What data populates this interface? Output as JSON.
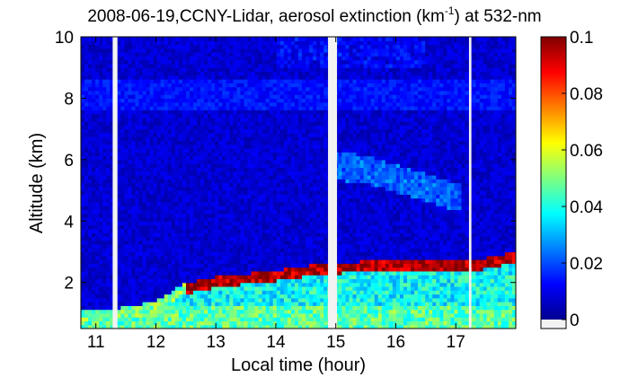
{
  "chart_data": {
    "type": "heatmap",
    "title": {
      "prefix": "2008-06-19,CCNY-Lidar, aerosol extinction (km",
      "superscript": "-1",
      "suffix": ") at 532-nm"
    },
    "xlabel": "Local time (hour)",
    "ylabel": "Altitude (km)",
    "xlim": [
      10.75,
      18.0
    ],
    "ylim": [
      0.5,
      10
    ],
    "x_ticks": [
      11,
      12,
      13,
      14,
      15,
      16,
      17
    ],
    "y_ticks": [
      2,
      4,
      6,
      8,
      10
    ],
    "colormap": "jet",
    "colorbar": {
      "range": [
        0,
        0.1
      ],
      "ticks": [
        "0",
        "0.02",
        "0.04",
        "0.06",
        "0.08",
        "0.1"
      ],
      "tick_values": [
        0,
        0.02,
        0.04,
        0.06,
        0.08,
        0.1
      ],
      "no_data_color": "#f2f2f2"
    },
    "missing_data_time_ranges": [
      [
        11.28,
        11.36
      ],
      [
        14.87,
        15.02
      ],
      [
        17.22,
        17.26
      ]
    ],
    "layers": [
      {
        "name": "boundary-layer-top",
        "time": [
          10.75,
          11.5,
          12.0,
          12.5,
          13.0,
          13.5,
          14.0,
          14.5,
          15.0,
          15.5,
          16.0,
          16.5,
          17.0,
          17.5,
          18.0
        ],
        "altitude_km": [
          0.9,
          1.0,
          1.2,
          1.8,
          2.0,
          2.1,
          2.2,
          2.35,
          2.45,
          2.5,
          2.55,
          2.5,
          2.5,
          2.6,
          2.8
        ]
      },
      {
        "name": "elevated-aerosol-layer",
        "time": [
          15.0,
          15.5,
          16.0,
          16.5,
          17.0
        ],
        "altitude_km": [
          5.8,
          5.7,
          5.4,
          5.1,
          4.8
        ]
      }
    ]
  }
}
